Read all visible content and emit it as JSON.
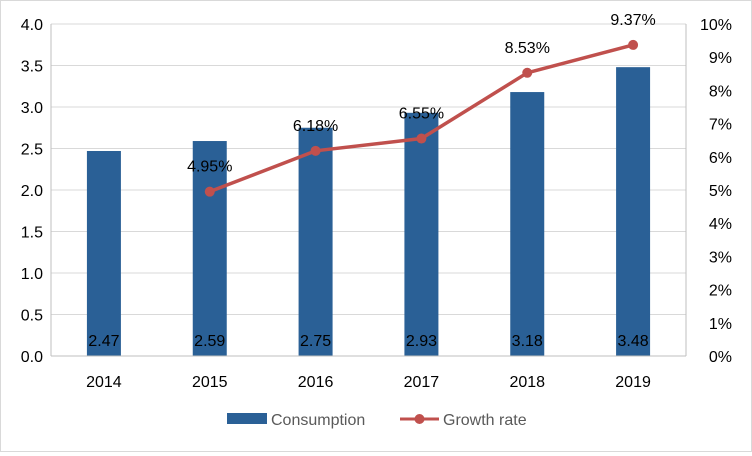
{
  "chart_data": {
    "type": "bar",
    "categories": [
      "2014",
      "2015",
      "2016",
      "2017",
      "2018",
      "2019"
    ],
    "series": [
      {
        "name": "Consumption",
        "type": "bar",
        "axis": "left",
        "color": "#2a6096",
        "values": [
          2.47,
          2.59,
          2.75,
          2.93,
          3.18,
          3.48
        ],
        "labels": [
          "2.47",
          "2.59",
          "2.75",
          "2.93",
          "3.18",
          "3.48"
        ]
      },
      {
        "name": "Growth rate",
        "type": "line",
        "axis": "right",
        "color": "#c0504d",
        "values": [
          null,
          4.95,
          6.18,
          6.55,
          8.53,
          9.37
        ],
        "labels": [
          "",
          "4.95%",
          "6.18%",
          "6.55%",
          "8.53%",
          "9.37%"
        ]
      }
    ],
    "y_left": {
      "min": 0,
      "max": 4.0,
      "step": 0.5,
      "ticks": [
        "0.0",
        "0.5",
        "1.0",
        "1.5",
        "2.0",
        "2.5",
        "3.0",
        "3.5",
        "4.0"
      ]
    },
    "y_right": {
      "min": 0,
      "max": 10,
      "step": 1,
      "ticks": [
        "0%",
        "1%",
        "2%",
        "3%",
        "4%",
        "5%",
        "6%",
        "7%",
        "8%",
        "9%",
        "10%"
      ]
    },
    "grid": true,
    "legend": "bottom-center",
    "title": "",
    "xlabel": "",
    "ylabel": ""
  },
  "legend": {
    "items": [
      "Consumption",
      "Growth rate"
    ]
  }
}
